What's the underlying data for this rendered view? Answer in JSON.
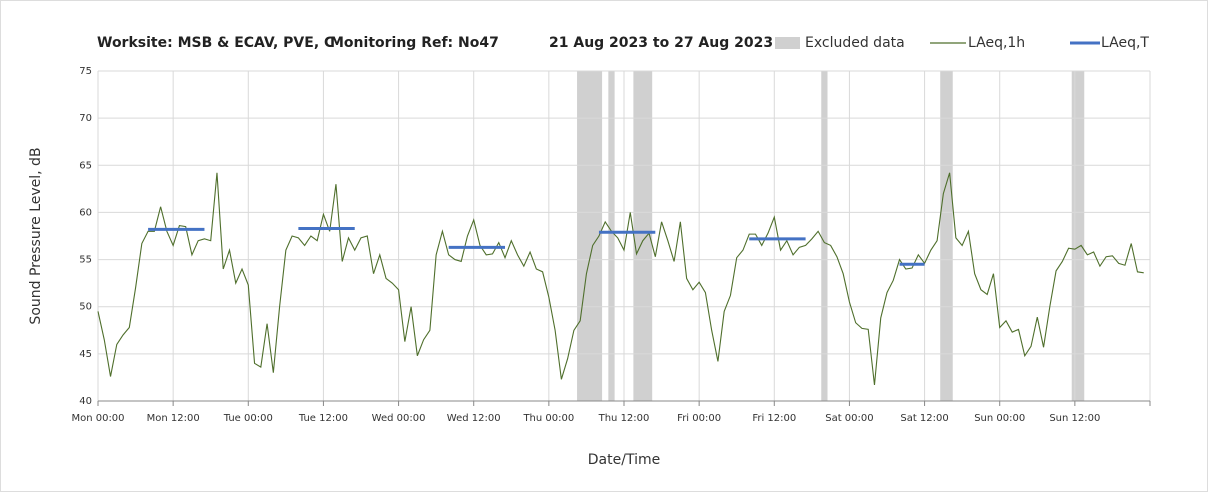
{
  "chart_data": {
    "type": "line",
    "title": {
      "worksite": "Worksite: MSB & ECAV, PVE, C",
      "monitoring_ref": "Monitoring Ref: No47",
      "date_range": "21 Aug 2023 to 27 Aug 2023"
    },
    "x_label": "Date/Time",
    "y_label": "Sound Pressure Level, dB",
    "xlim": [
      0,
      168
    ],
    "xticks": [
      {
        "value": 0,
        "label": "Mon 00:00"
      },
      {
        "value": 12,
        "label": "Mon 12:00"
      },
      {
        "value": 24,
        "label": "Tue 00:00"
      },
      {
        "value": 36,
        "label": "Tue 12:00"
      },
      {
        "value": 48,
        "label": "Wed 00:00"
      },
      {
        "value": 60,
        "label": "Wed 12:00"
      },
      {
        "value": 72,
        "label": "Thu 00:00"
      },
      {
        "value": 84,
        "label": "Thu 12:00"
      },
      {
        "value": 96,
        "label": "Fri 00:00"
      },
      {
        "value": 108,
        "label": "Fri 12:00"
      },
      {
        "value": 120,
        "label": "Sat 00:00"
      },
      {
        "value": 132,
        "label": "Sat 12:00"
      },
      {
        "value": 144,
        "label": "Sun 00:00"
      },
      {
        "value": 156,
        "label": "Sun 12:00"
      },
      {
        "value": 168,
        "label": ""
      }
    ],
    "ylim": [
      40,
      75
    ],
    "yticks": [
      40,
      45,
      50,
      55,
      60,
      65,
      70,
      75
    ],
    "grid": true,
    "excluded": {
      "name": "Excluded data",
      "color": "#d0d0d0",
      "ranges": [
        [
          76.5,
          80.5
        ],
        [
          81.5,
          82.5
        ],
        [
          85.5,
          88.5
        ],
        [
          115.5,
          116.5
        ],
        [
          134.5,
          136.5
        ],
        [
          155.5,
          157.5
        ]
      ]
    },
    "series": [
      {
        "name": "LAeq,1h",
        "color": "#4f6f2c",
        "x": [
          0,
          1,
          2,
          3,
          4,
          5,
          6,
          7,
          8,
          9,
          10,
          11,
          12,
          13,
          14,
          15,
          16,
          17,
          18,
          19,
          20,
          21,
          22,
          23,
          24,
          25,
          26,
          27,
          28,
          29,
          30,
          31,
          32,
          33,
          34,
          35,
          36,
          37,
          38,
          39,
          40,
          41,
          42,
          43,
          44,
          45,
          46,
          47,
          48,
          49,
          50,
          51,
          52,
          53,
          54,
          55,
          56,
          57,
          58,
          59,
          60,
          61,
          62,
          63,
          64,
          65,
          66,
          67,
          68,
          69,
          70,
          71,
          72,
          73,
          74,
          75,
          76,
          77,
          78,
          79,
          80,
          81,
          82,
          83,
          84,
          85,
          86,
          87,
          88,
          89,
          90,
          91,
          92,
          93,
          94,
          95,
          96,
          97,
          98,
          99,
          100,
          101,
          102,
          103,
          104,
          105,
          106,
          107,
          108,
          109,
          110,
          111,
          112,
          113,
          114,
          115,
          116,
          117,
          118,
          119,
          120,
          121,
          122,
          123,
          124,
          125,
          126,
          127,
          128,
          129,
          130,
          131,
          132,
          133,
          134,
          135,
          136,
          137,
          138,
          139,
          140,
          141,
          142,
          143,
          144,
          145,
          146,
          147,
          148,
          149,
          150,
          151,
          152,
          153,
          154,
          155,
          156,
          157,
          158,
          159,
          160,
          161,
          162,
          163,
          164,
          165,
          166,
          167
        ],
        "values": [
          49.5,
          46.5,
          42.6,
          46,
          47,
          47.8,
          52,
          56.7,
          58,
          58,
          60.6,
          58,
          56.5,
          58.6,
          58.5,
          55.5,
          57,
          57.2,
          57,
          64.2,
          54,
          56,
          52.5,
          54,
          52.3,
          44,
          43.6,
          48.2,
          43,
          50,
          56,
          57.5,
          57.3,
          56.5,
          57.5,
          57,
          59.8,
          58,
          63,
          54.8,
          57.3,
          56,
          57.3,
          57.5,
          53.5,
          55.5,
          53,
          52.5,
          51.8,
          46.3,
          50,
          44.8,
          46.5,
          47.5,
          55.5,
          58,
          55.5,
          55,
          54.8,
          57.5,
          59.2,
          56.5,
          55.5,
          55.6,
          56.8,
          55.2,
          57,
          55.5,
          54.3,
          55.8,
          54,
          53.7,
          51,
          47.5,
          42.3,
          44.5,
          47.5,
          48.5,
          53.5,
          56.5,
          57.5,
          59,
          58,
          57.3,
          56,
          60,
          55.6,
          57,
          57.8,
          55.3,
          59,
          57,
          54.8,
          59,
          53,
          51.8,
          52.6,
          51.5,
          47.5,
          44.2,
          49.5,
          51.2,
          55.2,
          56,
          57.7,
          57.7,
          56.5,
          57.8,
          59.5,
          56,
          57,
          55.5,
          56.3,
          56.5,
          57.2,
          58,
          56.8,
          56.5,
          55.3,
          53.5,
          50.5,
          48.3,
          47.7,
          47.6,
          41.7,
          48.8,
          51.5,
          52.8,
          55,
          54,
          54.1,
          55.5,
          54.6,
          56,
          57,
          62,
          64.2,
          57.3,
          56.5,
          58,
          53.5,
          51.8,
          51.3,
          53.5,
          47.8,
          48.5,
          47.3,
          47.6,
          44.8,
          45.8,
          48.9,
          45.7,
          50,
          53.8,
          54.8,
          56.2,
          56.1,
          56.5,
          55.5,
          55.8,
          54.3,
          55.3,
          55.4,
          54.6,
          54.4,
          56.7,
          53.7,
          53.6
        ]
      }
    ],
    "laeq_t": {
      "name": "LAeq,T",
      "color": "#4472c4",
      "segments": [
        {
          "x": [
            8,
            17
          ],
          "value": 58.2
        },
        {
          "x": [
            32,
            41
          ],
          "value": 58.3
        },
        {
          "x": [
            56,
            65
          ],
          "value": 56.3
        },
        {
          "x": [
            80,
            89
          ],
          "value": 57.9
        },
        {
          "x": [
            104,
            113
          ],
          "value": 57.2
        },
        {
          "x": [
            128,
            132
          ],
          "value": 54.5
        }
      ]
    }
  }
}
